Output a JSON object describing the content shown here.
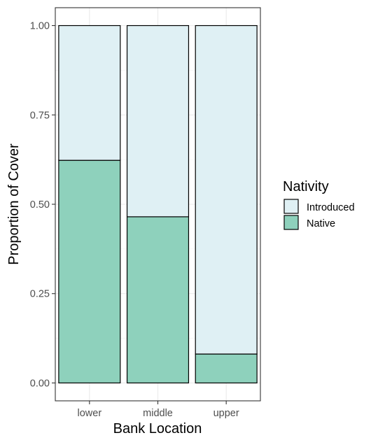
{
  "chart_data": {
    "type": "bar",
    "stacked": true,
    "categories": [
      "lower",
      "middle",
      "upper"
    ],
    "series": [
      {
        "name": "Native",
        "values": [
          0.623,
          0.465,
          0.081
        ],
        "color": "#8ed1bc"
      },
      {
        "name": "Introduced",
        "values": [
          0.377,
          0.535,
          0.919
        ],
        "color": "#dff0f4"
      }
    ],
    "xlabel": "Bank Location",
    "ylabel": "Proportion of Cover",
    "ylim": [
      -0.05,
      1.05
    ],
    "yticks": [
      0.0,
      0.25,
      0.5,
      0.75,
      1.0
    ],
    "yticklabels": [
      "0.00",
      "0.25",
      "0.50",
      "0.75",
      "1.00"
    ],
    "grid": true,
    "legend": {
      "title": "Nativity",
      "placement": "right",
      "entries": [
        "Introduced",
        "Native"
      ]
    }
  }
}
